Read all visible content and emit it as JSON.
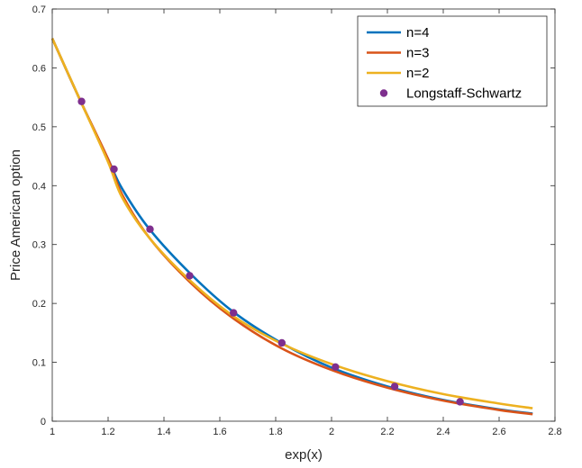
{
  "chart_data": {
    "type": "line",
    "xlabel": "exp(x)",
    "ylabel": "Price American option",
    "xlim": [
      1,
      2.8
    ],
    "ylim": [
      0,
      0.7
    ],
    "xticks": [
      "1",
      "1.2",
      "1.4",
      "1.6",
      "1.8",
      "2",
      "2.2",
      "2.4",
      "2.6",
      "2.8"
    ],
    "yticks": [
      "0",
      "0.1",
      "0.2",
      "0.3",
      "0.4",
      "0.5",
      "0.6",
      "0.7"
    ],
    "grid": false,
    "legend_position": "top-right",
    "series": [
      {
        "name": "n=4",
        "kind": "line",
        "color": "#0072BD",
        "x": [
          1.0,
          1.1,
          1.2,
          1.25,
          1.35,
          1.5,
          1.65,
          1.82,
          2.0,
          2.2,
          2.4,
          2.6,
          2.72
        ],
        "y": [
          0.65,
          0.545,
          0.445,
          0.395,
          0.325,
          0.248,
          0.185,
          0.133,
          0.091,
          0.059,
          0.036,
          0.02,
          0.013
        ]
      },
      {
        "name": "n=3",
        "kind": "line",
        "color": "#D95319",
        "x": [
          1.0,
          1.1,
          1.2,
          1.25,
          1.35,
          1.5,
          1.65,
          1.82,
          2.0,
          2.2,
          2.4,
          2.6,
          2.72
        ],
        "y": [
          0.65,
          0.545,
          0.445,
          0.385,
          0.31,
          0.233,
          0.174,
          0.124,
          0.087,
          0.057,
          0.035,
          0.019,
          0.012
        ]
      },
      {
        "name": "n=2",
        "kind": "line",
        "color": "#EDB120",
        "x": [
          1.0,
          1.1,
          1.2,
          1.25,
          1.35,
          1.5,
          1.65,
          1.82,
          2.0,
          2.2,
          2.4,
          2.6,
          2.72
        ],
        "y": [
          0.65,
          0.545,
          0.44,
          0.38,
          0.31,
          0.236,
          0.178,
          0.132,
          0.097,
          0.068,
          0.046,
          0.03,
          0.022
        ]
      },
      {
        "name": "Longstaff-Schwartz",
        "kind": "scatter",
        "color": "#7E2F8E",
        "x": [
          1.105,
          1.221,
          1.35,
          1.492,
          1.649,
          1.822,
          2.014,
          2.226,
          2.46
        ],
        "y": [
          0.543,
          0.428,
          0.326,
          0.247,
          0.184,
          0.133,
          0.092,
          0.059,
          0.033
        ]
      }
    ]
  }
}
